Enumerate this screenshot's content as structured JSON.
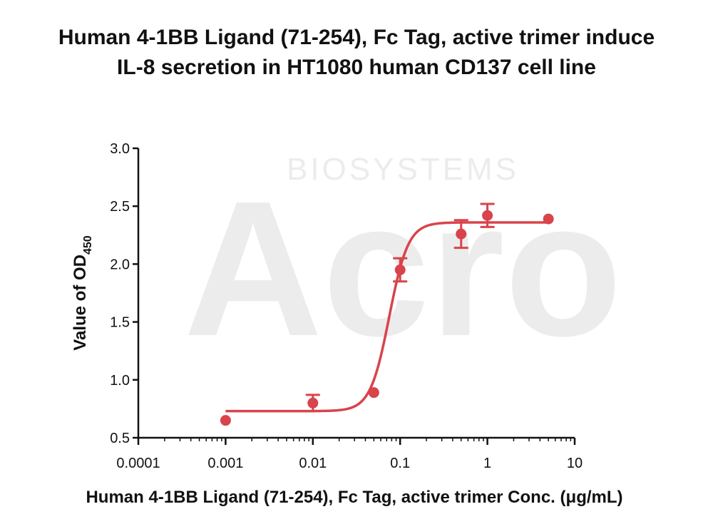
{
  "title": {
    "line1": "Human 4-1BB Ligand (71-254), Fc Tag, active trimer induce",
    "line2": "IL-8 secretion in HT1080 human CD137 cell line"
  },
  "watermark": {
    "top": "BIOSYSTEMS",
    "main": "Acro"
  },
  "chart_data": {
    "type": "scatter",
    "title": "Human 4-1BB Ligand (71-254), Fc Tag, active trimer induce IL-8 secretion in HT1080 human CD137 cell line",
    "xlabel": "Human 4-1BB Ligand (71-254), Fc Tag, active trimer Conc. (μg/mL)",
    "ylabel_main": "Value of OD",
    "ylabel_sub": "450",
    "xscale": "log",
    "xlim": [
      0.0001,
      10
    ],
    "ylim": [
      0.5,
      3.0
    ],
    "x_ticks": [
      0.0001,
      0.001,
      0.01,
      0.1,
      1,
      10
    ],
    "x_tick_labels": [
      "0.0001",
      "0.001",
      "0.01",
      "0.1",
      "1",
      "10"
    ],
    "y_ticks": [
      0.5,
      1.0,
      1.5,
      2.0,
      2.5,
      3.0
    ],
    "y_tick_labels": [
      "0.5",
      "1.0",
      "1.5",
      "2.0",
      "2.5",
      "3.0"
    ],
    "color": "#d9434b",
    "series": [
      {
        "points": [
          {
            "x": 0.001,
            "y": 0.65,
            "err": 0
          },
          {
            "x": 0.01,
            "y": 0.8,
            "err": 0.07
          },
          {
            "x": 0.05,
            "y": 0.89,
            "err": 0
          },
          {
            "x": 0.1,
            "y": 1.95,
            "err": 0.1
          },
          {
            "x": 0.5,
            "y": 2.26,
            "err": 0.12
          },
          {
            "x": 1,
            "y": 2.42,
            "err": 0.1
          },
          {
            "x": 5,
            "y": 2.39,
            "err": 0
          }
        ],
        "fit": {
          "bottom": 0.73,
          "top": 2.36,
          "ec50": 0.075,
          "hill": 4.0,
          "x_range": [
            0.001,
            5
          ]
        }
      }
    ]
  }
}
